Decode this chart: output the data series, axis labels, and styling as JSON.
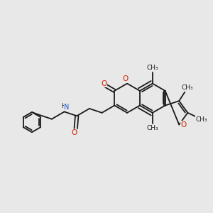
{
  "background_color": "#e8e8e8",
  "bond_color": "#1a1a1a",
  "oxygen_color": "#cc2200",
  "nitrogen_color": "#2255cc",
  "lw": 1.3,
  "figsize": [
    3.0,
    3.0
  ],
  "dpi": 100,
  "xlim": [
    0,
    10
  ],
  "ylim": [
    0,
    10
  ]
}
